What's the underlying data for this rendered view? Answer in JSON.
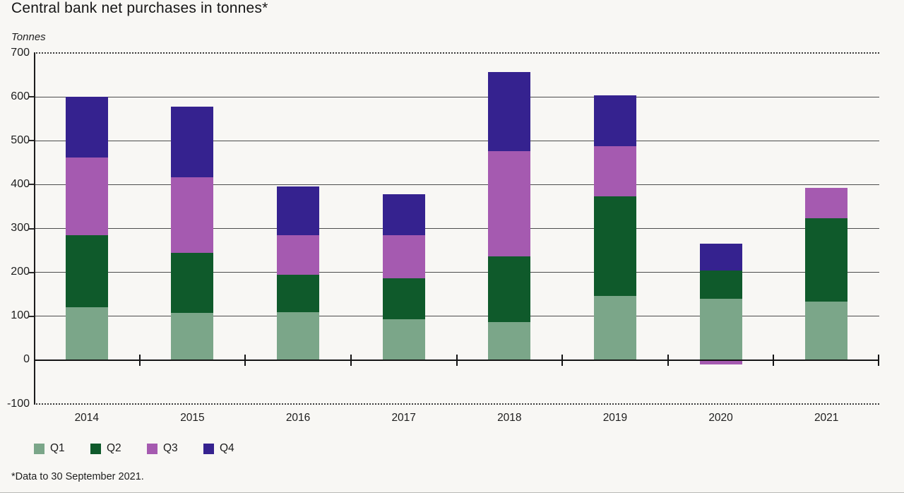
{
  "page": {
    "title": "Central bank net purchases in tonnes*",
    "unit_label": "Tonnes",
    "footnote": "*Data to 30 September 2021."
  },
  "chart_data": {
    "type": "bar",
    "stacked": true,
    "title": "Central bank net purchases in tonnes*",
    "ylabel": "Tonnes",
    "xlabel": "",
    "categories": [
      "2014",
      "2015",
      "2016",
      "2017",
      "2018",
      "2019",
      "2020",
      "2021"
    ],
    "series": [
      {
        "name": "Q1",
        "color": "#7ba689",
        "values": [
          120,
          107,
          110,
          93,
          87,
          147,
          140,
          134
        ]
      },
      {
        "name": "Q2",
        "color": "#0f5a2b",
        "values": [
          165,
          137,
          85,
          93,
          150,
          226,
          64,
          189
        ]
      },
      {
        "name": "Q3",
        "color": "#a55ab0",
        "values": [
          177,
          172,
          90,
          99,
          240,
          114,
          -10,
          70
        ]
      },
      {
        "name": "Q4",
        "color": "#35228f",
        "values": [
          138,
          162,
          110,
          93,
          179,
          117,
          61,
          0
        ]
      }
    ],
    "totals_by_year": [
      600,
      578,
      395,
      378,
      656,
      604,
      255,
      393
    ],
    "ylim": [
      -100,
      700
    ],
    "ytick_step": 100,
    "yticks": [
      "700",
      "600",
      "500",
      "400",
      "300",
      "200",
      "100",
      "0",
      "-100"
    ],
    "grid": true,
    "legend_position": "bottom-left",
    "legend_labels": [
      "Q1",
      "Q2",
      "Q3",
      "Q4"
    ]
  }
}
